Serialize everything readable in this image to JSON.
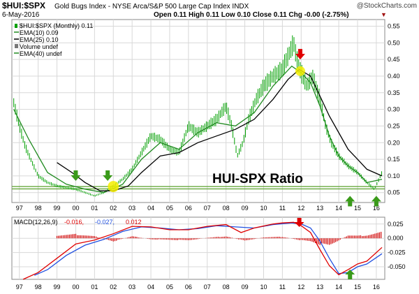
{
  "header": {
    "symbol": "$HUI:$SPX",
    "description": "Gold Bugs Index - NYSE Arca/S&P 500 Large Cap Index  INDX",
    "watermark": "@StockCharts.com",
    "date": "6-May-2016",
    "quote": "Open 0.11  High 0.11  Low 0.10  Close 0.11  Chg -0.00 (-2.75%)",
    "quote_arrow": "▼"
  },
  "legend": {
    "main": "$HUI:$SPX (Monthly) 0.11",
    "ema10": "EMA(10) 0.09",
    "ema25": "EMA(25) 0.10",
    "volume": "Volume undef",
    "ema40": "EMA(40) undef"
  },
  "annotation": "HUI-SPX Ratio",
  "macd_label": "MACD(12,26,9)",
  "macd_values": [
    "-0.016,",
    "-0.027,",
    "0.012"
  ],
  "colors": {
    "price": "#00a000",
    "ema10": "#208a20",
    "ema25": "#000000",
    "support": "#5aa02c",
    "macd": "#e00000",
    "signal": "#2050e0",
    "histogram": "#d00000",
    "arrow_green": "#3a9a1a",
    "arrow_red": "#e00000",
    "highlight": "#f4ee00",
    "grid": "#d8d8d8"
  },
  "icons": {
    "buy_signal": "green-down-arrow-icon",
    "top_signal": "red-down-arrow-icon",
    "up_signal": "green-up-arrow-icon"
  },
  "chart_data": [
    {
      "type": "line",
      "title": "$HUI:$SPX (Monthly)",
      "x_ticks": [
        "97",
        "98",
        "99",
        "00",
        "01",
        "02",
        "03",
        "04",
        "05",
        "06",
        "07",
        "08",
        "09",
        "10",
        "11",
        "12",
        "13",
        "14",
        "15",
        "16"
      ],
      "y_ticks": [
        "0.55",
        "0.50",
        "0.45",
        "0.40",
        "0.35",
        "0.30",
        "0.25",
        "0.20",
        "0.15",
        "0.10",
        "0.05"
      ],
      "ylim": [
        0.02,
        0.57
      ],
      "xlim": [
        1996.6,
        2016.45
      ],
      "grid": true,
      "legend_position": "top-left",
      "support_levels": [
        0.068,
        0.061
      ],
      "series": [
        {
          "name": "$HUI:$SPX",
          "x": [
            1996.7,
            1997.0,
            1997.3,
            1997.6,
            1998.0,
            1998.5,
            1999.0,
            1999.5,
            2000.0,
            2000.5,
            2001.0,
            2001.5,
            2002.0,
            2002.5,
            2003.0,
            2003.5,
            2004.0,
            2004.5,
            2005.0,
            2005.5,
            2006.0,
            2006.5,
            2007.0,
            2007.5,
            2008.0,
            2008.3,
            2008.6,
            2008.9,
            2009.2,
            2009.6,
            2010.0,
            2010.5,
            2011.0,
            2011.3,
            2011.6,
            2011.8,
            2012.0,
            2012.3,
            2012.6,
            2013.0,
            2013.3,
            2013.6,
            2014.0,
            2014.5,
            2015.0,
            2015.5,
            2015.9,
            2016.3
          ],
          "y": [
            0.32,
            0.25,
            0.19,
            0.15,
            0.1,
            0.08,
            0.07,
            0.065,
            0.06,
            0.05,
            0.04,
            0.05,
            0.07,
            0.09,
            0.12,
            0.17,
            0.22,
            0.21,
            0.18,
            0.17,
            0.25,
            0.23,
            0.25,
            0.27,
            0.31,
            0.25,
            0.16,
            0.2,
            0.27,
            0.33,
            0.37,
            0.4,
            0.42,
            0.46,
            0.5,
            0.44,
            0.41,
            0.37,
            0.4,
            0.33,
            0.25,
            0.2,
            0.16,
            0.13,
            0.11,
            0.08,
            0.06,
            0.11
          ]
        },
        {
          "name": "EMA(10)",
          "x": [
            1996.7,
            1997.5,
            1998.5,
            1999.5,
            2000.5,
            2001.5,
            2002.5,
            2003.5,
            2004.5,
            2005.5,
            2006.5,
            2007.5,
            2008.5,
            2009.5,
            2010.5,
            2011.5,
            2012.0,
            2012.5,
            2013.0,
            2013.5,
            2014.0,
            2014.5,
            2015.0,
            2015.5,
            2016.3
          ],
          "y": [
            0.3,
            0.21,
            0.11,
            0.075,
            0.06,
            0.05,
            0.075,
            0.15,
            0.2,
            0.18,
            0.23,
            0.26,
            0.25,
            0.29,
            0.37,
            0.43,
            0.41,
            0.38,
            0.31,
            0.22,
            0.16,
            0.13,
            0.11,
            0.08,
            0.09
          ]
        },
        {
          "name": "EMA(25)",
          "x": [
            1999.0,
            1999.8,
            2000.5,
            2001.3,
            2002.0,
            2002.8,
            2003.5,
            2004.5,
            2005.5,
            2006.5,
            2007.5,
            2008.5,
            2009.5,
            2010.5,
            2011.3,
            2011.9,
            2012.5,
            2013.0,
            2013.5,
            2014.0,
            2014.5,
            2015.0,
            2015.5,
            2016.3
          ],
          "y": [
            0.14,
            0.11,
            0.08,
            0.055,
            0.055,
            0.07,
            0.11,
            0.16,
            0.17,
            0.2,
            0.22,
            0.24,
            0.27,
            0.33,
            0.39,
            0.42,
            0.4,
            0.34,
            0.28,
            0.23,
            0.18,
            0.15,
            0.12,
            0.1
          ]
        }
      ]
    },
    {
      "type": "line",
      "title": "MACD(12,26,9)",
      "y_ticks": [
        "0.025",
        "0.000",
        "-0.025",
        "-0.050"
      ],
      "ylim": [
        -0.072,
        0.037
      ],
      "xlim": [
        1996.6,
        2016.45
      ],
      "grid": true,
      "series": [
        {
          "name": "MACD",
          "x": [
            1997.2,
            1998.0,
            1999.0,
            2000.0,
            2001.0,
            2002.0,
            2003.0,
            2004.0,
            2005.0,
            2006.0,
            2007.0,
            2008.0,
            2008.8,
            2009.5,
            2010.5,
            2011.0,
            2011.6,
            2012.0,
            2012.5,
            2013.0,
            2013.5,
            2014.0,
            2014.5,
            2015.0,
            2015.5,
            2016.3
          ],
          "y": [
            -0.072,
            -0.06,
            -0.035,
            -0.01,
            -0.003,
            0.008,
            0.021,
            0.02,
            0.015,
            0.015,
            0.021,
            0.024,
            0.01,
            0.018,
            0.025,
            0.027,
            0.028,
            0.022,
            0.01,
            -0.02,
            -0.048,
            -0.064,
            -0.055,
            -0.045,
            -0.04,
            -0.016
          ]
        },
        {
          "name": "Signal",
          "x": [
            1997.8,
            1998.5,
            1999.5,
            2000.5,
            2001.5,
            2002.5,
            2003.5,
            2004.5,
            2005.5,
            2006.5,
            2007.5,
            2008.5,
            2009.5,
            2010.5,
            2011.5,
            2012.0,
            2012.5,
            2013.0,
            2013.5,
            2014.0,
            2014.5,
            2015.0,
            2015.5,
            2016.3
          ],
          "y": [
            -0.065,
            -0.055,
            -0.03,
            -0.012,
            -0.002,
            0.012,
            0.02,
            0.018,
            0.015,
            0.017,
            0.022,
            0.02,
            0.018,
            0.024,
            0.027,
            0.025,
            0.018,
            -0.005,
            -0.035,
            -0.062,
            -0.06,
            -0.05,
            -0.045,
            -0.027
          ]
        },
        {
          "name": "Histogram",
          "x": [
            1999.0,
            2000.0,
            2001.0,
            2002.0,
            2003.0,
            2004.0,
            2005.0,
            2006.0,
            2007.0,
            2008.0,
            2009.0,
            2010.0,
            2011.0,
            2012.0,
            2012.5,
            2013.0,
            2013.5,
            2014.0,
            2014.5,
            2015.0,
            2015.5,
            2016.3
          ],
          "y": [
            0.006,
            0.008,
            0.004,
            -0.006,
            0.004,
            -0.002,
            -0.003,
            -0.004,
            0.001,
            0.004,
            -0.005,
            0.002,
            0.003,
            -0.004,
            -0.006,
            -0.012,
            -0.014,
            -0.004,
            0.006,
            0.005,
            0.006,
            0.012
          ]
        }
      ]
    }
  ]
}
